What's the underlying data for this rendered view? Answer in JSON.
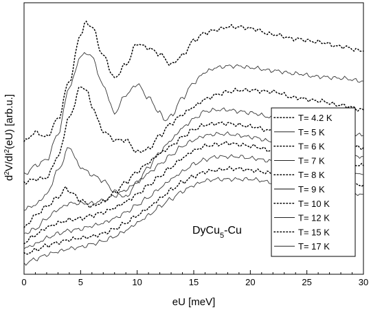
{
  "chart_data": {
    "type": "line",
    "title": "",
    "xlabel": "eU [meV]",
    "ylabel": {
      "main": "d",
      "sup1": "2",
      "mid1": "V/dI",
      "sup2": "2",
      "mid2": "(eU) [arb.u.]"
    },
    "xlim": [
      0,
      30
    ],
    "xticks": [
      0,
      5,
      10,
      15,
      20,
      25,
      30
    ],
    "yticks_labeled": false,
    "grid": false,
    "legend_position": "right",
    "annotation": {
      "main": "DyCu",
      "sub": "5",
      "rest": "-Cu"
    },
    "series": [
      {
        "name": "T= 4.2 K",
        "style": "dotted",
        "x": [
          0,
          1,
          2,
          3,
          4,
          5,
          5.5,
          6,
          7,
          8,
          9,
          10,
          11,
          12,
          13,
          14,
          15,
          16,
          17,
          18,
          19,
          20,
          22,
          24,
          26,
          28,
          30
        ],
        "y": [
          7.3,
          7.9,
          7.6,
          8.8,
          11.3,
          14.4,
          15.2,
          14.9,
          13.0,
          11.5,
          12.4,
          13.8,
          13.5,
          13.1,
          12.4,
          13.0,
          14.0,
          14.5,
          14.7,
          14.9,
          14.9,
          14.8,
          14.4,
          14.1,
          13.9,
          13.6,
          13.3
        ]
      },
      {
        "name": "T= 5 K",
        "style": "solid",
        "x": [
          0,
          1,
          2,
          3,
          4,
          5,
          5.5,
          6,
          7,
          8,
          9,
          10,
          11,
          12,
          12.5,
          13,
          14,
          15,
          16,
          17,
          18,
          19,
          20,
          22,
          24,
          26,
          28,
          30
        ],
        "y": [
          5.1,
          5.7,
          6.1,
          7.8,
          10.9,
          12.9,
          13.2,
          12.9,
          11.0,
          9.2,
          10.4,
          11.1,
          10.2,
          9.2,
          8.7,
          9.0,
          10.2,
          11.2,
          11.9,
          12.2,
          12.3,
          12.3,
          12.2,
          12.0,
          11.8,
          11.6,
          11.5,
          11.3
        ]
      },
      {
        "name": "T= 6 K",
        "style": "dotted",
        "x": [
          0,
          1,
          2,
          3,
          4,
          5,
          5.5,
          6,
          7,
          8,
          9,
          10,
          11,
          12,
          13,
          14,
          15,
          16,
          17,
          18,
          19,
          20,
          22,
          24,
          26,
          28,
          30
        ],
        "y": [
          4.6,
          4.8,
          4.9,
          6.3,
          8.9,
          10.9,
          10.8,
          9.6,
          8.0,
          7.4,
          7.4,
          6.6,
          6.8,
          7.7,
          8.5,
          9.1,
          9.6,
          10.1,
          10.4,
          10.6,
          10.7,
          10.7,
          10.6,
          10.2,
          10.0,
          9.7,
          9.4
        ]
      },
      {
        "name": "T= 7 K",
        "style": "solid",
        "x": [
          0,
          1,
          2,
          3,
          4,
          5,
          6,
          7,
          8,
          9,
          10,
          11,
          12,
          13,
          14,
          15,
          16,
          17,
          18,
          19,
          20,
          22,
          24,
          26,
          28,
          30
        ],
        "y": [
          2.8,
          3.1,
          3.8,
          5.4,
          6.9,
          5.6,
          5.1,
          4.7,
          4.0,
          3.6,
          4.6,
          5.6,
          6.6,
          7.4,
          8.2,
          8.8,
          9.3,
          9.4,
          9.4,
          9.3,
          9.2,
          8.9,
          8.5,
          8.2,
          8.0,
          7.7
        ]
      },
      {
        "name": "T= 8 K",
        "style": "dotted",
        "x": [
          0,
          1,
          2,
          3,
          3.7,
          4.2,
          5,
          6,
          7,
          8,
          9,
          10,
          11,
          12,
          13,
          14,
          15,
          16,
          17,
          18,
          19,
          20,
          22,
          24,
          26,
          28,
          30
        ],
        "y": [
          1.6,
          2.4,
          3.0,
          3.6,
          4.2,
          3.9,
          3.4,
          3.0,
          3.3,
          3.9,
          4.6,
          5.3,
          5.9,
          6.5,
          7.0,
          7.6,
          8.1,
          8.4,
          8.5,
          8.5,
          8.4,
          8.3,
          8.0,
          7.7,
          7.4,
          7.1,
          6.9
        ]
      },
      {
        "name": "T= 9 K",
        "style": "solid",
        "x": [
          0,
          1,
          2,
          3,
          4,
          5,
          6,
          7,
          8,
          9,
          10,
          11,
          12,
          13,
          14,
          15,
          16,
          17,
          18,
          19,
          20,
          22,
          24,
          26,
          28,
          30
        ],
        "y": [
          1.2,
          1.5,
          2.2,
          2.8,
          3.2,
          3.2,
          3.2,
          3.4,
          3.7,
          4.1,
          4.6,
          5.2,
          5.8,
          6.4,
          7.0,
          7.4,
          7.7,
          7.8,
          7.8,
          7.7,
          7.6,
          7.3,
          7.0,
          6.7,
          6.5,
          6.3
        ]
      },
      {
        "name": "T= 10 K",
        "style": "dotted",
        "x": [
          0,
          1,
          2,
          3,
          4,
          5,
          6,
          7,
          8,
          9,
          10,
          11,
          12,
          13,
          14,
          15,
          16,
          17,
          18,
          19,
          20,
          22,
          24,
          26,
          28,
          30
        ],
        "y": [
          0.6,
          1.1,
          1.6,
          1.9,
          2.1,
          2.2,
          2.4,
          2.6,
          2.9,
          3.3,
          3.8,
          4.4,
          5.0,
          5.6,
          6.2,
          6.7,
          7.0,
          7.1,
          7.2,
          7.1,
          7.0,
          6.7,
          6.4,
          6.1,
          5.9,
          5.7
        ]
      },
      {
        "name": "T= 12 K",
        "style": "solid",
        "x": [
          0,
          1,
          2,
          3,
          4,
          5,
          6,
          7,
          8,
          9,
          10,
          11,
          12,
          13,
          14,
          15,
          16,
          17,
          18,
          19,
          20,
          22,
          24,
          26,
          28,
          30
        ],
        "y": [
          0.2,
          0.5,
          0.9,
          1.2,
          1.4,
          1.5,
          1.7,
          1.9,
          2.2,
          2.6,
          3.1,
          3.6,
          4.2,
          4.8,
          5.3,
          5.8,
          6.1,
          6.3,
          6.3,
          6.3,
          6.2,
          6.0,
          5.7,
          5.5,
          5.3,
          5.1
        ]
      },
      {
        "name": "T= 15 K",
        "style": "dotted",
        "x": [
          0,
          1,
          2,
          3,
          4,
          5,
          6,
          7,
          8,
          9,
          10,
          11,
          12,
          13,
          14,
          15,
          16,
          17,
          18,
          19,
          20,
          22,
          24,
          26,
          28,
          30
        ],
        "y": [
          -0.2,
          0.1,
          0.4,
          0.6,
          0.8,
          0.9,
          1.0,
          1.2,
          1.5,
          1.9,
          2.4,
          2.9,
          3.5,
          4.1,
          4.6,
          5.0,
          5.3,
          5.4,
          5.5,
          5.5,
          5.4,
          5.2,
          5.0,
          4.8,
          4.6,
          4.4
        ]
      },
      {
        "name": "T= 17 K",
        "style": "solid",
        "x": [
          0,
          1,
          2,
          3,
          4,
          5,
          6,
          7,
          8,
          9,
          10,
          11,
          12,
          13,
          14,
          15,
          16,
          17,
          18,
          19,
          20,
          22,
          24,
          26,
          28,
          30
        ],
        "y": [
          -0.8,
          -0.5,
          -0.2,
          0.0,
          0.2,
          0.3,
          0.5,
          0.7,
          1.0,
          1.4,
          1.9,
          2.4,
          3.0,
          3.5,
          4.0,
          4.4,
          4.7,
          4.8,
          4.8,
          4.8,
          4.8,
          4.6,
          4.4,
          4.2,
          4.0,
          3.8
        ]
      }
    ]
  }
}
